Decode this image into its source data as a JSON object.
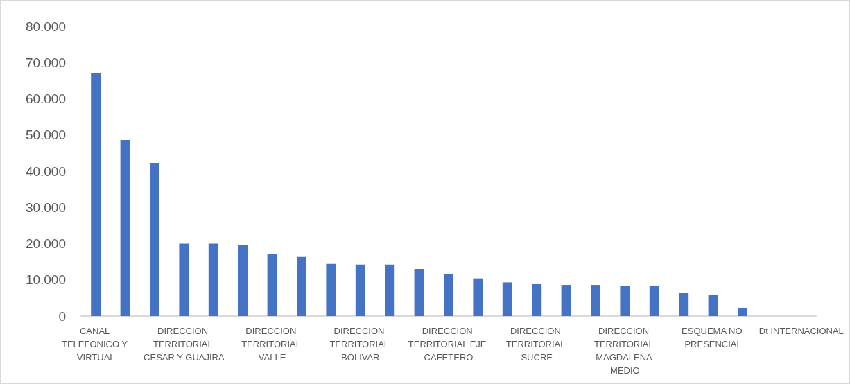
{
  "chart_data": {
    "type": "bar",
    "categories": [
      "CANAL TELEFONICO Y VIRTUAL",
      null,
      null,
      "DIRECCION TERRITORIAL CESAR Y GUAJIRA",
      null,
      null,
      "DIRECCION TERRITORIAL VALLE",
      null,
      null,
      "DIRECCION TERRITORIAL BOLIVAR",
      null,
      null,
      "DIRECCION TERRITORIAL EJE CAFETERO",
      null,
      null,
      "DIRECCION TERRITORIAL SUCRE",
      null,
      null,
      "DIRECCION TERRITORIAL MAGDALENA MEDIO",
      null,
      null,
      "ESQUEMA NO PRESENCIAL",
      null,
      null,
      "Dt INTERNACIONAL"
    ],
    "values": [
      67100,
      48600,
      42300,
      20000,
      20000,
      19700,
      17200,
      16300,
      14400,
      14200,
      14200,
      13000,
      11600,
      10400,
      9300,
      8800,
      8600,
      8600,
      8400,
      8400,
      6500,
      5800,
      2300,
      0,
      0
    ],
    "color": "#4472c4",
    "ylim": [
      0,
      80000
    ],
    "yticks": [
      {
        "value": 0,
        "label": "0"
      },
      {
        "value": 10000,
        "label": "10.000"
      },
      {
        "value": 20000,
        "label": "20.000"
      },
      {
        "value": 30000,
        "label": "30.000"
      },
      {
        "value": 40000,
        "label": "40.000"
      },
      {
        "value": 50000,
        "label": "50.000"
      },
      {
        "value": 60000,
        "label": "60.000"
      },
      {
        "value": 70000,
        "label": "70.000"
      },
      {
        "value": 80000,
        "label": "80.000"
      }
    ],
    "grid": false
  }
}
